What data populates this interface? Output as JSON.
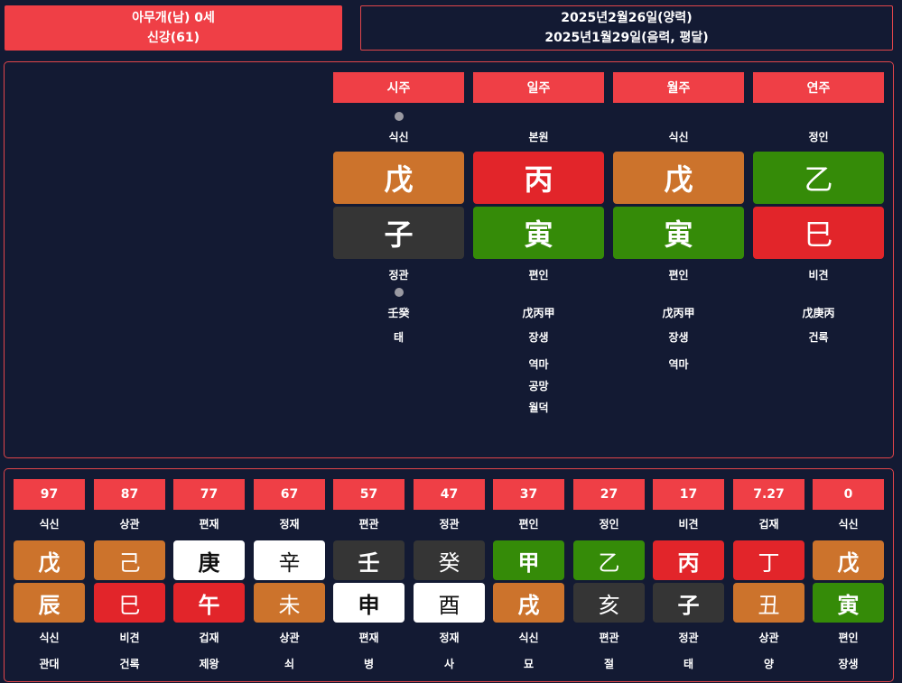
{
  "header": {
    "name_line": "아무개(남) 0세",
    "strength_line": "신강(61)",
    "solar_date": "2025년2월26일(양력)",
    "lunar_date": "2025년1월29일(음력, 평달)"
  },
  "pillars": [
    {
      "title": "시주",
      "has_top_dot": true,
      "stem_god": "식신",
      "stem": "戊",
      "stem_color": "orange",
      "stem_weight": "bold",
      "branch": "子",
      "branch_color": "dark",
      "branch_weight": "bold",
      "branch_god": "정관",
      "has_bottom_dot": true,
      "hidden": "壬癸",
      "stage": "태",
      "extras": []
    },
    {
      "title": "일주",
      "has_top_dot": false,
      "stem_god": "본원",
      "stem": "丙",
      "stem_color": "red",
      "stem_weight": "bold",
      "branch": "寅",
      "branch_color": "green",
      "branch_weight": "bold",
      "branch_god": "편인",
      "has_bottom_dot": false,
      "hidden": "戊丙甲",
      "stage": "장생",
      "extras": [
        "역마",
        "공망",
        "월덕"
      ]
    },
    {
      "title": "월주",
      "has_top_dot": false,
      "stem_god": "식신",
      "stem": "戊",
      "stem_color": "orange",
      "stem_weight": "bold",
      "branch": "寅",
      "branch_color": "green",
      "branch_weight": "bold",
      "branch_god": "편인",
      "has_bottom_dot": false,
      "hidden": "戊丙甲",
      "stage": "장생",
      "extras": [
        "역마"
      ]
    },
    {
      "title": "연주",
      "has_top_dot": false,
      "stem_god": "정인",
      "stem": "乙",
      "stem_color": "green",
      "stem_weight": "normal",
      "branch": "巳",
      "branch_color": "red",
      "branch_weight": "normal",
      "branch_god": "비견",
      "has_bottom_dot": false,
      "hidden": "戊庚丙",
      "stage": "건록",
      "extras": []
    }
  ],
  "luck": [
    {
      "age": "97",
      "stem_god": "식신",
      "stem": "戊",
      "stem_color": "orange",
      "stem_weight": "bold",
      "branch": "辰",
      "branch_color": "orange",
      "branch_weight": "bold",
      "branch_god": "식신",
      "stage": "관대"
    },
    {
      "age": "87",
      "stem_god": "상관",
      "stem": "己",
      "stem_color": "orange",
      "stem_weight": "normal",
      "branch": "巳",
      "branch_color": "red",
      "branch_weight": "normal",
      "branch_god": "비견",
      "stage": "건록"
    },
    {
      "age": "77",
      "stem_god": "편재",
      "stem": "庚",
      "stem_color": "white",
      "stem_weight": "bold",
      "branch": "午",
      "branch_color": "red",
      "branch_weight": "bold",
      "branch_god": "겁재",
      "stage": "제왕"
    },
    {
      "age": "67",
      "stem_god": "정재",
      "stem": "辛",
      "stem_color": "white",
      "stem_weight": "normal",
      "branch": "未",
      "branch_color": "orange",
      "branch_weight": "normal",
      "branch_god": "상관",
      "stage": "쇠"
    },
    {
      "age": "57",
      "stem_god": "편관",
      "stem": "壬",
      "stem_color": "dark",
      "stem_weight": "bold",
      "branch": "申",
      "branch_color": "white",
      "branch_weight": "bold",
      "branch_god": "편재",
      "stage": "병"
    },
    {
      "age": "47",
      "stem_god": "정관",
      "stem": "癸",
      "stem_color": "dark",
      "stem_weight": "normal",
      "branch": "酉",
      "branch_color": "white",
      "branch_weight": "normal",
      "branch_god": "정재",
      "stage": "사"
    },
    {
      "age": "37",
      "stem_god": "편인",
      "stem": "甲",
      "stem_color": "green",
      "stem_weight": "bold",
      "branch": "戌",
      "branch_color": "orange",
      "branch_weight": "bold",
      "branch_god": "식신",
      "stage": "묘"
    },
    {
      "age": "27",
      "stem_god": "정인",
      "stem": "乙",
      "stem_color": "green",
      "stem_weight": "normal",
      "branch": "亥",
      "branch_color": "dark",
      "branch_weight": "normal",
      "branch_god": "편관",
      "stage": "절"
    },
    {
      "age": "17",
      "stem_god": "비견",
      "stem": "丙",
      "stem_color": "red",
      "stem_weight": "bold",
      "branch": "子",
      "branch_color": "dark",
      "branch_weight": "bold",
      "branch_god": "정관",
      "stage": "태"
    },
    {
      "age": "7.27",
      "stem_god": "겁재",
      "stem": "丁",
      "stem_color": "red",
      "stem_weight": "normal",
      "branch": "丑",
      "branch_color": "orange",
      "branch_weight": "normal",
      "branch_god": "상관",
      "stage": "양"
    },
    {
      "age": "0",
      "stem_god": "식신",
      "stem": "戊",
      "stem_color": "orange",
      "stem_weight": "bold",
      "branch": "寅",
      "branch_color": "green",
      "branch_weight": "bold",
      "branch_god": "편인",
      "stage": "장생"
    }
  ]
}
